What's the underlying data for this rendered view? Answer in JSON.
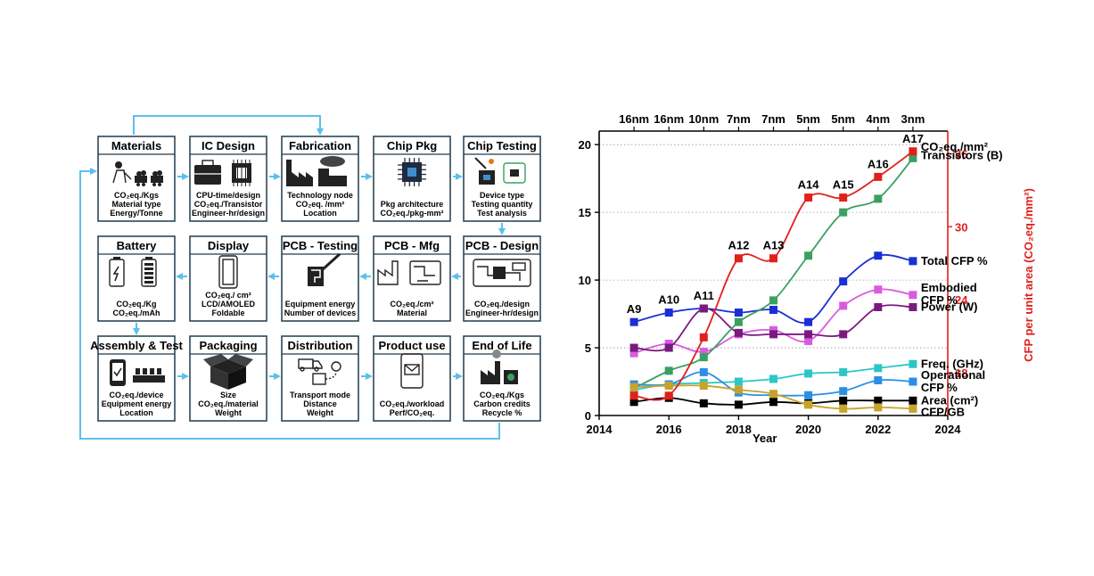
{
  "diagram": {
    "boxes": [
      {
        "title": "Materials",
        "lines": [
          "CO₂eq./Kgs",
          "Material type",
          "Energy/Tonne"
        ],
        "icon": "miner-icon"
      },
      {
        "title": "IC Design",
        "lines": [
          "CPU-time/design",
          "CO₂eq./Transistor",
          "Engineer-hr/design"
        ],
        "icon": "briefcase-chip-icon"
      },
      {
        "title": "Fabrication",
        "lines": [
          "Technology node",
          "CO₂eq. /mm²",
          "Location"
        ],
        "icon": "factory-icon"
      },
      {
        "title": "Chip Pkg",
        "lines": [
          "Pkg architecture",
          "CO₂eq./pkg-mm²"
        ],
        "icon": "chip-icon"
      },
      {
        "title": "Chip Testing",
        "lines": [
          "Device type",
          "Testing quantity",
          "Test analysis"
        ],
        "icon": "probe-icon"
      },
      {
        "title": "PCB - Design",
        "lines": [
          "CO₂eq./design",
          "Engineer-hr/design"
        ],
        "icon": "circuit-board-icon"
      },
      {
        "title": "PCB - Mfg",
        "lines": [
          "CO₂eq./cm²",
          "Material"
        ],
        "icon": "pcb-factory-icon"
      },
      {
        "title": "PCB - Testing",
        "lines": [
          "Equipment energy",
          "Number of devices"
        ],
        "icon": "pen-tester-icon"
      },
      {
        "title": "Display",
        "lines": [
          "CO₂eq./ cm²",
          "LCD/AMOLED",
          "Foldable"
        ],
        "icon": "phone-outline-icon"
      },
      {
        "title": "Battery",
        "lines": [
          "CO₂eq./Kg",
          "CO₂eq./mAh"
        ],
        "icon": "battery-icon"
      },
      {
        "title": "Assembly & Test",
        "lines": [
          "CO₂eq./device",
          "Equipment energy",
          "Location"
        ],
        "icon": "assembly-icon"
      },
      {
        "title": "Packaging",
        "lines": [
          "Size",
          "CO₂eq./material",
          "Weight"
        ],
        "icon": "box-icon"
      },
      {
        "title": "Distribution",
        "lines": [
          "Transport mode",
          "Distance",
          "Weight"
        ],
        "icon": "truck-icon"
      },
      {
        "title": "Product use",
        "lines": [
          "CO₂eq./workload",
          "Perf/CO₂eq."
        ],
        "icon": "phone-mail-icon"
      },
      {
        "title": "End of Life",
        "lines": [
          "CO₂eq./Kgs",
          "Carbon credits",
          "Recycle %"
        ],
        "icon": "recycle-factory-icon"
      }
    ],
    "colors": {
      "arrow": "#5bc0eb",
      "box_border": "#1f3b4d"
    }
  },
  "chart_data": {
    "type": "line",
    "xlabel": "Year",
    "xlim": [
      2014,
      2024
    ],
    "xticks": [
      2014,
      2016,
      2018,
      2020,
      2022,
      2024
    ],
    "ylim": [
      0,
      21
    ],
    "yticks": [
      0,
      5,
      10,
      15,
      20
    ],
    "y2lim": [
      14.47,
      37.87
    ],
    "y2ticks": [
      18,
      24,
      30,
      36
    ],
    "y2label": "CFP per unit area (CO₂eq./mm²)",
    "top_ticks": [
      "16nm",
      "16nm",
      "10nm",
      "7nm",
      "7nm",
      "5nm",
      "5nm",
      "4nm",
      "3nm"
    ],
    "chip_labels": [
      "A9",
      "A10",
      "A11",
      "A12",
      "A13",
      "A14",
      "A15",
      "A16",
      "A17"
    ],
    "x": [
      2015,
      2016,
      2017,
      2018,
      2019,
      2020,
      2021,
      2022,
      2023
    ],
    "grid": "dotted horizontal",
    "series": [
      {
        "name": "Total CFP %",
        "color": "#1a2fd6",
        "axis": "left",
        "values": [
          6.9,
          7.6,
          7.9,
          7.6,
          7.8,
          6.9,
          9.9,
          11.8,
          11.4
        ]
      },
      {
        "name": "Embodied CFP %",
        "color": "#d95be0",
        "axis": "left",
        "values": [
          4.6,
          5.3,
          4.7,
          6.0,
          6.3,
          5.5,
          8.1,
          9.3,
          8.9
        ]
      },
      {
        "name": "Power (W)",
        "color": "#7a1a7e",
        "axis": "left",
        "values": [
          5.0,
          5.0,
          7.9,
          6.1,
          6.0,
          6.0,
          6.0,
          8.0,
          8.0
        ]
      },
      {
        "name": "Transistors (B)",
        "color": "#3aa060",
        "axis": "left",
        "values": [
          2.0,
          3.3,
          4.3,
          6.9,
          8.5,
          11.8,
          15.0,
          16.0,
          19.0
        ]
      },
      {
        "name": "Freq. (GHz)",
        "color": "#2cc6c6",
        "axis": "left",
        "values": [
          1.9,
          2.3,
          2.4,
          2.5,
          2.7,
          3.1,
          3.2,
          3.5,
          3.8
        ]
      },
      {
        "name": "Operational CFP %",
        "color": "#2b8fe6",
        "axis": "left",
        "values": [
          2.3,
          2.3,
          3.2,
          1.7,
          1.5,
          1.5,
          1.8,
          2.6,
          2.5
        ]
      },
      {
        "name": "Area (cm²)",
        "color": "#000000",
        "axis": "left",
        "values": [
          1.0,
          1.3,
          0.9,
          0.8,
          1.0,
          0.9,
          1.1,
          1.1,
          1.1
        ]
      },
      {
        "name": "CFP/GB",
        "color": "#c8a32a",
        "axis": "left",
        "values": [
          2.1,
          2.2,
          2.2,
          1.9,
          1.6,
          0.8,
          0.5,
          0.6,
          0.5
        ]
      },
      {
        "name": "CO₂eq./mm²",
        "color": "#e0201b",
        "axis": "right",
        "values": [
          16.1,
          16.1,
          20.9,
          27.4,
          27.4,
          32.4,
          32.4,
          34.1,
          36.2
        ]
      }
    ],
    "colors": {
      "right_axis": "#e0201b"
    }
  }
}
